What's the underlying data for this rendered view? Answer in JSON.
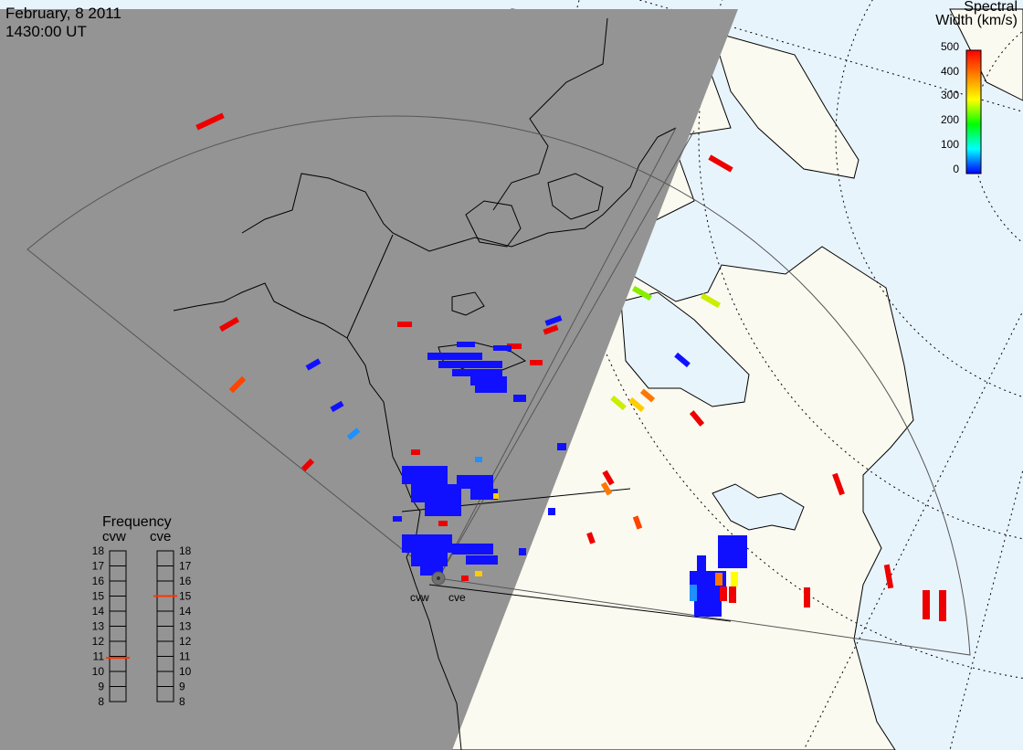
{
  "header": {
    "date": "February, 8 2011",
    "time": "1430:00 UT"
  },
  "colorbar": {
    "title_line1": "Spectral",
    "title_line2": "Width (km/s)",
    "ticks": [
      "500",
      "400",
      "300",
      "200",
      "100",
      "0"
    ],
    "colors": [
      "#ff0000",
      "#ff7f00",
      "#ffff00",
      "#00ff00",
      "#00ffff",
      "#0000ff"
    ]
  },
  "frequency": {
    "title": "Frequency",
    "radars": [
      {
        "name": "cvw",
        "value_mhz": 10.9
      },
      {
        "name": "cve",
        "value_mhz": 15.0
      }
    ],
    "scale": [
      "18",
      "17",
      "16",
      "15",
      "14",
      "13",
      "12",
      "11",
      "10",
      "9",
      "8"
    ],
    "indicator_color": "#ff3300"
  },
  "map": {
    "radar_labels": [
      "cvw",
      "cve"
    ],
    "night_color": "#949494",
    "land_day_color": "#fafaf0",
    "ocean_day_color": "#e8f4fc"
  }
}
